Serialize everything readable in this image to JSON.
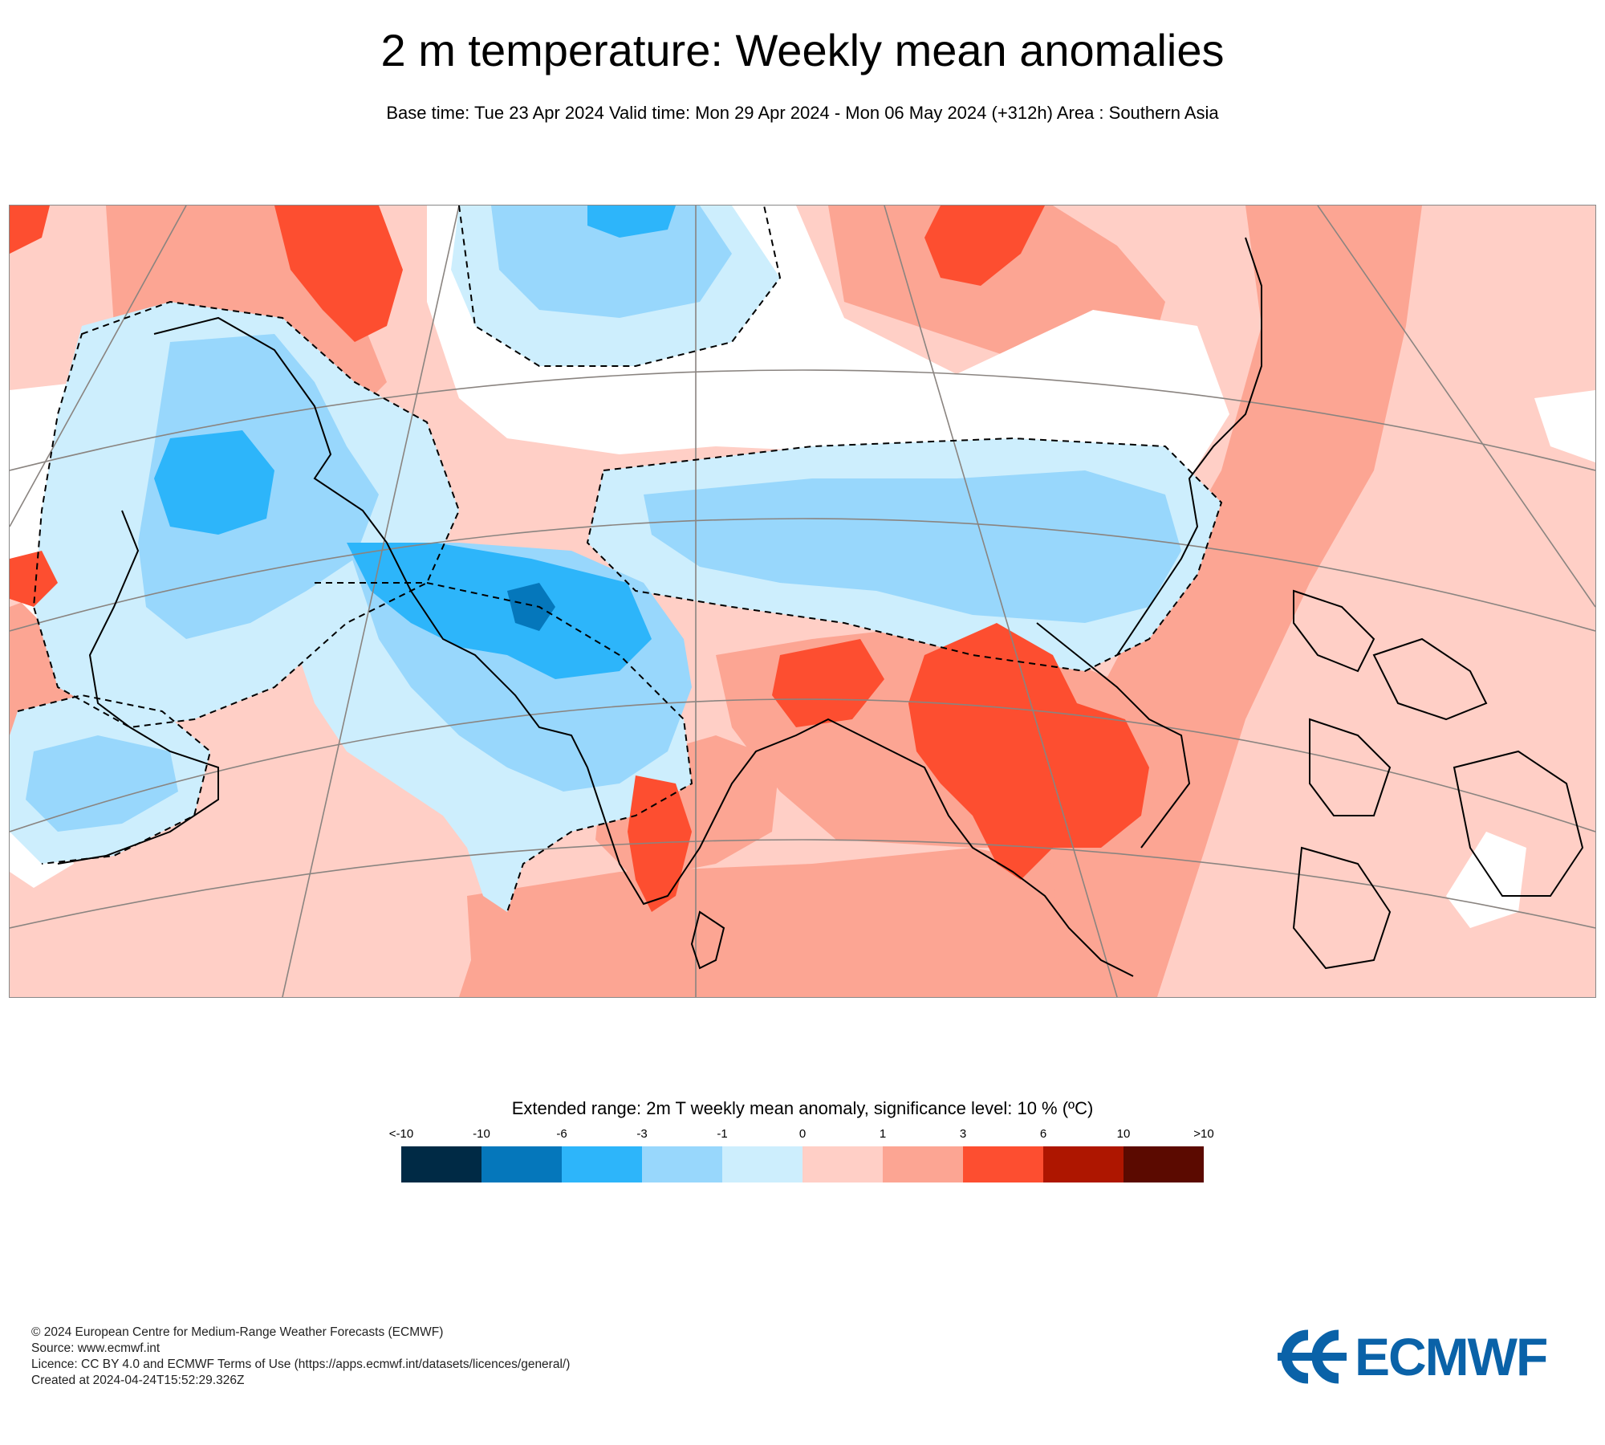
{
  "header": {
    "title": "2 m temperature: Weekly mean anomalies",
    "subtitle": "Base time: Tue 23 Apr 2024 Valid time: Mon 29 Apr 2024 - Mon 06 May 2024 (+312h) Area : Southern Asia"
  },
  "map": {
    "area": "Southern Asia",
    "colors": {
      "ocean_warm_light": "#ffcfc6",
      "warm_mid": "#fca593",
      "warm_strong": "#fd4e30",
      "neutral": "#ffffff",
      "cool_light": "#cdeefd",
      "cool_mid": "#98d7fc",
      "cool_strong": "#2db5fa",
      "cool_deep": "#0577bb",
      "coast": "#000000",
      "graticule": "#8a8480"
    }
  },
  "legend": {
    "title": "Extended range: 2m T weekly mean anomaly, significance level: 10 % (ºC)",
    "ticks": [
      "<-10",
      "-10",
      "-6",
      "-3",
      "-1",
      "0",
      "1",
      "3",
      "6",
      "10",
      ">10"
    ],
    "colors": [
      "#002a45",
      "#0577bb",
      "#2db5fa",
      "#98d7fc",
      "#cdeefd",
      "#ffcfc6",
      "#fca593",
      "#fd4e30",
      "#ae1600",
      "#5b0a00"
    ]
  },
  "footer": {
    "lines": [
      "© 2024 European Centre for Medium-Range Weather Forecasts (ECMWF)",
      "Source: www.ecmwf.int",
      "Licence: CC BY 4.0 and ECMWF Terms of Use (https://apps.ecmwf.int/datasets/licences/general/)",
      "Created at 2024-04-24T15:52:29.326Z"
    ]
  },
  "logo": {
    "text": "ECMWF",
    "color": "#0a62a8"
  }
}
